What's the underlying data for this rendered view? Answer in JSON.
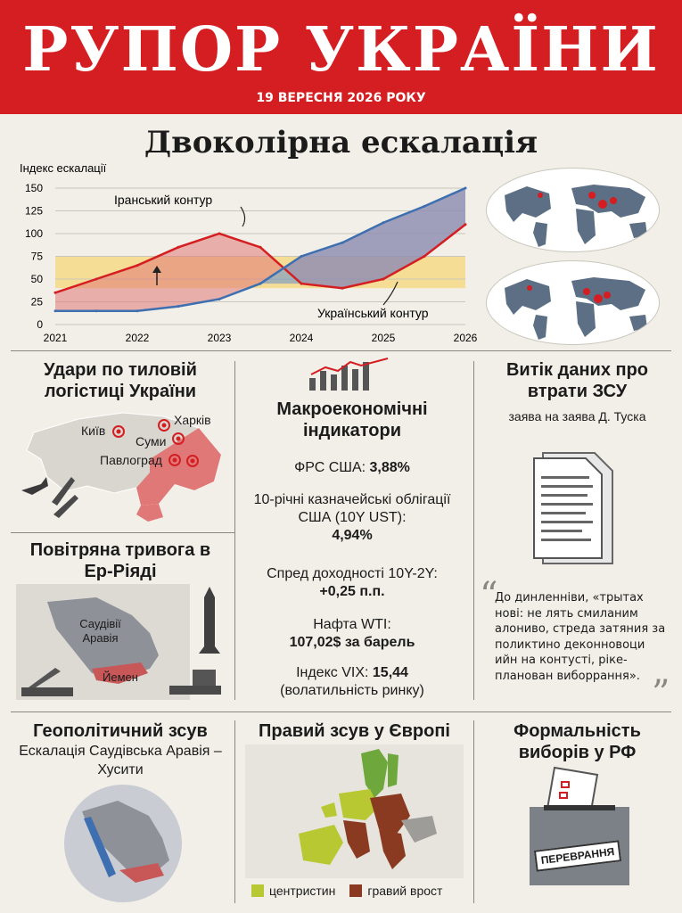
{
  "masthead": {
    "title": "РУПОР УКРАЇНИ",
    "date": "19 ВЕРЕСНЯ 2026 РОКУ"
  },
  "colors": {
    "red": "#d41e22",
    "blue": "#3e6fb0",
    "band": "#f7d77a",
    "centrist": "#b8c832",
    "far_right": "#8b3a22"
  },
  "chart_data": {
    "type": "area",
    "title": "Двоколірна ескалація",
    "ylabel": "Індекс ескалації",
    "x": [
      2021,
      2021.5,
      2022,
      2022.5,
      2023,
      2023.5,
      2024,
      2024.5,
      2025,
      2025.5,
      2026
    ],
    "xticks": [
      2021,
      2022,
      2023,
      2024,
      2025,
      2026
    ],
    "yticks": [
      0,
      25,
      50,
      75,
      100,
      125,
      150
    ],
    "ylim": [
      0,
      150
    ],
    "band": [
      40,
      75
    ],
    "series": [
      {
        "name": "Іранський контур",
        "values": [
          35,
          50,
          65,
          85,
          100,
          85,
          45,
          40,
          50,
          75,
          110
        ]
      },
      {
        "name": "Український контур",
        "values": [
          15,
          15,
          15,
          20,
          28,
          45,
          75,
          90,
          112,
          130,
          150
        ]
      }
    ],
    "annotations": [
      "Іранський контур",
      "Український контур"
    ]
  },
  "panels": {
    "strikes": {
      "title": "Удари по тиловій логістиці України",
      "cities": [
        "Харків",
        "Київ",
        "Суми",
        "Павлоград"
      ]
    },
    "alert": {
      "title": "Повітряна тривога в Ер-Ріяді",
      "labels": [
        "Саудівії Аравія",
        "Йемен"
      ]
    },
    "macro": {
      "title": "Макроекономічні індикатори",
      "fed_label": "ФРС США:",
      "fed_value": "3,88%",
      "ust_label": "10-річні казначейські облігації США (10Y UST):",
      "ust_value": "4,94%",
      "spread_label": "Спред доходності 10Y-2Y:",
      "spread_value": "+0,25 п.п.",
      "oil_label": "Нафта WTI:",
      "oil_value": "107,02$",
      "oil_unit": "за барель",
      "vix_label": "Індекс VIX:",
      "vix_value": "15,44",
      "vix_note": "(волатильність ринку)"
    },
    "leak": {
      "title": "Витік даних про втрати ЗСУ",
      "subtitle": "заява на заява Д. Туска",
      "quote": "До динленніви, «трытах новi: не лять смиланим алониво, стреда затяния за поликтино деконновоци ийн на контусті, ріке-планован виборрання»."
    },
    "geo": {
      "title": "Геополітичний зсув",
      "subtitle": "Ескалація Саудівська Аравія – Хусити"
    },
    "europe": {
      "title": "Правий зсув у Європі",
      "legend_centrist": "центристин",
      "legend_far_right": "гравий врост"
    },
    "elections": {
      "title": "Формальність виборів у РФ",
      "box_label": "ПЕРЕВРАННЯ"
    }
  }
}
